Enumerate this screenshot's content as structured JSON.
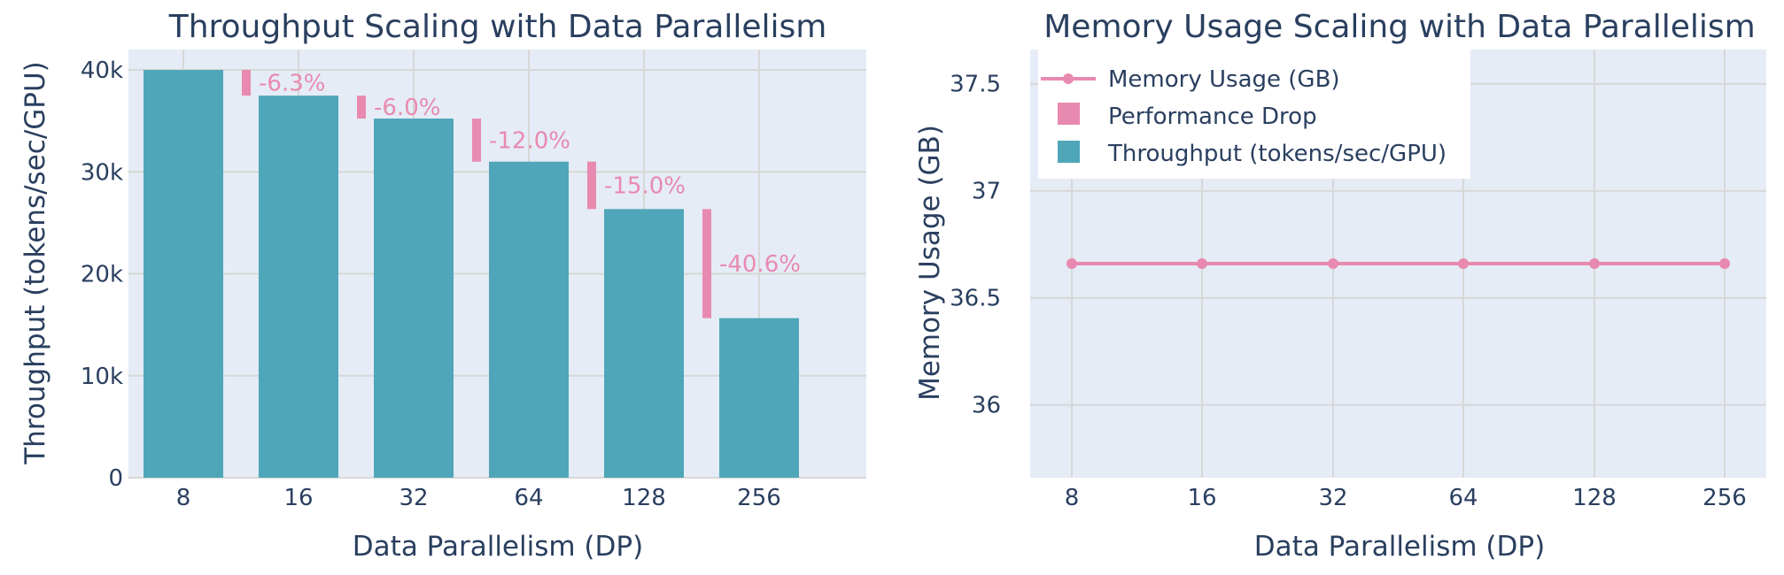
{
  "chart_data": [
    {
      "type": "bar",
      "title": "Throughput Scaling with Data Parallelism",
      "xlabel": "Data Parallelism (DP)",
      "ylabel": "Throughput (tokens/sec/GPU)",
      "categories": [
        "8",
        "16",
        "32",
        "64",
        "128",
        "256"
      ],
      "series": [
        {
          "name": "Throughput (tokens/sec/GPU)",
          "values": [
            40000,
            37480,
            35230,
            31000,
            26350,
            15650
          ],
          "color": "#4fa6b9"
        },
        {
          "name": "Performance Drop",
          "values": [
            0,
            2520,
            2250,
            4230,
            4650,
            10700
          ],
          "labels": [
            "",
            "-6.3%",
            "-6.0%",
            "-12.0%",
            "-15.0%",
            "-40.6%"
          ],
          "color": "#e88aaf"
        }
      ],
      "ylim": [
        0,
        42000
      ],
      "yticks": [
        0,
        10000,
        20000,
        30000,
        40000
      ],
      "ytick_labels": [
        "0",
        "10k",
        "20k",
        "30k",
        "40k"
      ],
      "grid": true
    },
    {
      "type": "line",
      "title": "Memory Usage Scaling with Data Parallelism",
      "xlabel": "Data Parallelism (DP)",
      "ylabel": "Memory Usage (GB)",
      "categories": [
        "8",
        "16",
        "32",
        "64",
        "128",
        "256"
      ],
      "series": [
        {
          "name": "Memory Usage (GB)",
          "values": [
            36.66,
            36.66,
            36.66,
            36.66,
            36.66,
            36.66
          ],
          "color": "#e88aaf"
        }
      ],
      "ylim": [
        35.66,
        37.66
      ],
      "yticks": [
        36,
        36.5,
        37,
        37.5
      ],
      "ytick_labels": [
        "36",
        "36.5",
        "37",
        "37.5"
      ],
      "grid": true,
      "legend": {
        "placement": "top-left",
        "entries": [
          "Memory Usage (GB)",
          "Performance Drop",
          "Throughput (tokens/sec/GPU)"
        ]
      }
    }
  ],
  "colors": {
    "plot_bg": "#e5ecf6",
    "grid": "#d7d7d7",
    "text": "#2a3f5f",
    "bar": "#4fa6b9",
    "accent": "#e88aaf"
  }
}
